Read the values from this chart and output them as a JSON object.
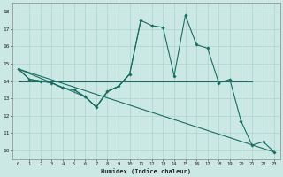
{
  "xlabel": "Humidex (Indice chaleur)",
  "xlim": [
    -0.5,
    23.5
  ],
  "ylim": [
    9.5,
    18.5
  ],
  "xticks": [
    0,
    1,
    2,
    3,
    4,
    5,
    6,
    7,
    8,
    9,
    10,
    11,
    12,
    13,
    14,
    15,
    16,
    17,
    18,
    19,
    20,
    21,
    22,
    23
  ],
  "yticks": [
    10,
    11,
    12,
    13,
    14,
    15,
    16,
    17,
    18
  ],
  "bg_color": "#cce8e4",
  "grid_color": "#aad4ce",
  "line_color": "#1a6e62",
  "main_line": {
    "x": [
      0,
      1,
      2,
      3,
      4,
      5,
      6,
      7,
      8,
      9,
      10,
      11,
      12,
      13,
      14,
      15,
      16,
      17,
      18,
      19,
      20,
      21,
      22,
      23
    ],
    "y": [
      14.7,
      14.1,
      14.0,
      13.9,
      13.6,
      13.5,
      13.1,
      12.5,
      13.4,
      13.7,
      14.4,
      17.5,
      17.2,
      17.1,
      14.3,
      17.8,
      16.1,
      15.9,
      13.9,
      14.1,
      11.7,
      10.3,
      10.5,
      9.9
    ]
  },
  "horizontal_line": {
    "x": [
      0,
      21
    ],
    "y": [
      14.0,
      14.0
    ]
  },
  "diagonal_line": {
    "x": [
      0,
      23
    ],
    "y": [
      14.7,
      9.9
    ]
  },
  "secondary_lines": [
    {
      "x": [
        0,
        1,
        2,
        3,
        4,
        5,
        6,
        7,
        8,
        9,
        10,
        11
      ],
      "y": [
        14.7,
        14.1,
        14.0,
        13.9,
        13.6,
        13.5,
        13.1,
        12.5,
        13.4,
        13.7,
        14.4,
        17.5
      ]
    },
    {
      "x": [
        0,
        3,
        6,
        7,
        8,
        9,
        10
      ],
      "y": [
        14.7,
        13.9,
        13.1,
        12.5,
        13.4,
        13.7,
        14.4
      ]
    }
  ]
}
